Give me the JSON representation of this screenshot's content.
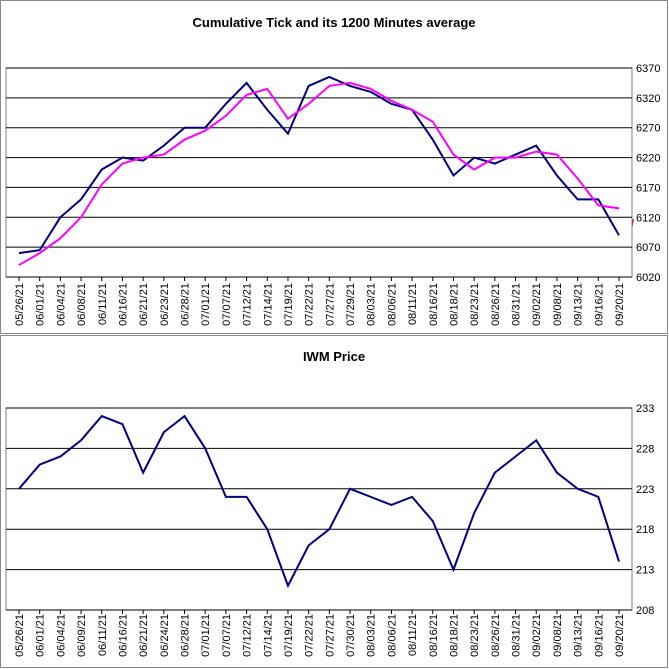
{
  "chart_data": [
    {
      "type": "line",
      "title": "Cumulative Tick and its 1200 Minutes average",
      "categories": [
        "05/26/21",
        "06/01/21",
        "06/04/21",
        "06/08/21",
        "06/11/21",
        "06/16/21",
        "06/21/21",
        "06/23/21",
        "06/28/21",
        "07/01/21",
        "07/07/21",
        "07/12/21",
        "07/14/21",
        "07/19/21",
        "07/22/21",
        "07/27/21",
        "07/29/21",
        "08/03/21",
        "08/06/21",
        "08/11/21",
        "08/16/21",
        "08/18/21",
        "08/23/21",
        "08/26/21",
        "08/31/21",
        "09/02/21",
        "09/08/21",
        "09/13/21",
        "09/16/21",
        "09/20/21"
      ],
      "series": [
        {
          "color": "#000080",
          "values": [
            6060,
            6065,
            6120,
            6150,
            6200,
            6220,
            6215,
            6240,
            6270,
            6270,
            6310,
            6345,
            6300,
            6260,
            6340,
            6355,
            6340,
            6330,
            6310,
            6300,
            6250,
            6190,
            6220,
            6210,
            6225,
            6240,
            6190,
            6150,
            6150,
            6090
          ]
        },
        {
          "color": "#ff00ff",
          "values": [
            6040,
            6060,
            6085,
            6120,
            6175,
            6210,
            6220,
            6225,
            6250,
            6265,
            6290,
            6325,
            6335,
            6285,
            6310,
            6340,
            6345,
            6335,
            6315,
            6300,
            6280,
            6225,
            6200,
            6220,
            6220,
            6230,
            6225,
            6185,
            6140,
            6135
          ]
        }
      ],
      "ylim": [
        6020,
        6370
      ],
      "yticks": [
        6020,
        6070,
        6120,
        6170,
        6220,
        6270,
        6320,
        6370
      ],
      "grid": true
    },
    {
      "type": "line",
      "title": "IWM Price",
      "categories": [
        "05/26/21",
        "06/01/21",
        "06/04/21",
        "06/09/21",
        "06/11/21",
        "06/16/21",
        "06/21/21",
        "06/24/21",
        "06/28/21",
        "07/01/21",
        "07/07/21",
        "07/12/21",
        "07/14/21",
        "07/19/21",
        "07/22/21",
        "07/27/21",
        "07/30/21",
        "08/03/21",
        "08/06/21",
        "08/11/21",
        "08/16/21",
        "08/18/21",
        "08/23/21",
        "08/26/21",
        "08/31/21",
        "09/02/21",
        "09/08/21",
        "09/13/21",
        "09/16/21",
        "09/20/21"
      ],
      "series": [
        {
          "color": "#000080",
          "values": [
            223,
            226,
            227,
            229,
            232,
            231,
            225,
            230,
            232,
            228,
            222,
            222,
            218,
            211,
            216,
            218,
            223,
            222,
            221,
            222,
            219,
            213,
            220,
            225,
            227,
            229,
            225,
            223,
            222,
            214
          ]
        }
      ],
      "ylim": [
        208,
        233
      ],
      "yticks": [
        208,
        213,
        218,
        223,
        228,
        233
      ],
      "grid": true
    }
  ]
}
